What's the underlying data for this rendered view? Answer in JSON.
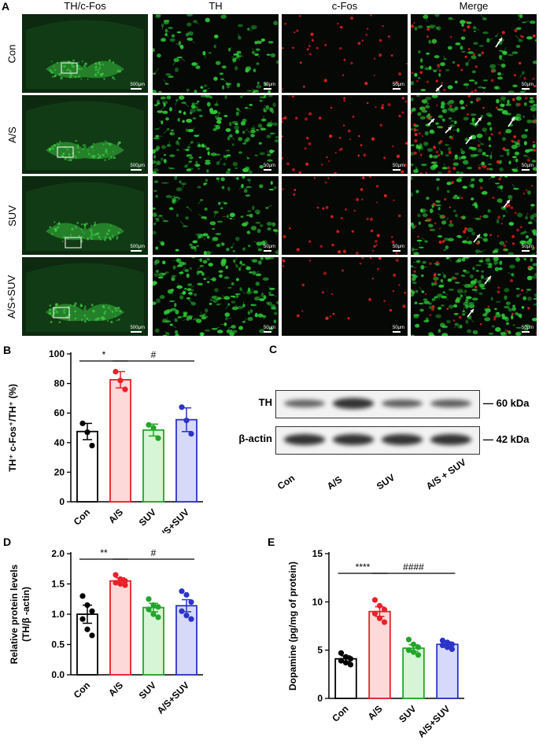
{
  "panel_A": {
    "label": "A",
    "columns": [
      "TH/c-Fos",
      "TH",
      "c-Fos",
      "Merge"
    ],
    "rows": [
      "Con",
      "A/S",
      "SUV",
      "A/S+SUV"
    ],
    "scale_overview": "500μm",
    "scale_zoom": "50μm",
    "colors": {
      "green": "#2fd23a",
      "red": "#e02020",
      "background": "#050805"
    }
  },
  "panel_C": {
    "label": "C",
    "bands": [
      {
        "name": "TH",
        "size": "60 kDa",
        "intensity": [
          0.55,
          0.95,
          0.6,
          0.6
        ]
      },
      {
        "name": "β-actin",
        "size": "42 kDa",
        "intensity": [
          0.95,
          0.95,
          0.95,
          0.95
        ]
      }
    ],
    "lanes": [
      "Con",
      "A/S",
      "SUV",
      "A/S + SUV"
    ]
  },
  "chart_data": [
    {
      "id": "B",
      "type": "bar",
      "panel_label": "B",
      "categories": [
        "Con",
        "A/S",
        "SUV",
        "A/S+SUV"
      ],
      "values": [
        47.5,
        82.5,
        48.5,
        55.5
      ],
      "errors": [
        5.5,
        5.5,
        4.0,
        8.0
      ],
      "points": [
        [
          53,
          47,
          38
        ],
        [
          88,
          82,
          76
        ],
        [
          52,
          50,
          43
        ],
        [
          64,
          55,
          46
        ]
      ],
      "ylabel": "TH⁺ c-Fos⁺/TH⁺ (%)",
      "ylim": [
        0,
        100
      ],
      "yticks": [
        0,
        20,
        40,
        60,
        80,
        100
      ],
      "colors": {
        "fill": [
          "#ffffff",
          "#fdd9d9",
          "#d6f5d6",
          "#d6d9fa"
        ],
        "stroke": [
          "#000000",
          "#e8202a",
          "#22a52a",
          "#2b33c8"
        ]
      },
      "significance": [
        {
          "text": "*",
          "from": 0,
          "to": 1
        },
        {
          "text": "#",
          "from": 1,
          "to": 3
        }
      ]
    },
    {
      "id": "D",
      "type": "bar",
      "panel_label": "D",
      "categories": [
        "Con",
        "A/S",
        "SUV",
        "A/S+SUV"
      ],
      "values": [
        1.0,
        1.55,
        1.11,
        1.14
      ],
      "errors": [
        0.15,
        0.05,
        0.07,
        0.1
      ],
      "points": [
        [
          1.3,
          1.15,
          1.05,
          0.92,
          0.75,
          0.65
        ],
        [
          1.65,
          1.58,
          1.55,
          1.52,
          1.5,
          1.48
        ],
        [
          1.25,
          1.15,
          1.12,
          1.08,
          1.0,
          0.95
        ],
        [
          1.38,
          1.32,
          1.2,
          1.05,
          0.98,
          0.92
        ]
      ],
      "ylabel": "Relative protein levels\n(TH/β -actin)",
      "ylim": [
        0,
        2.0
      ],
      "yticks": [
        0.0,
        0.5,
        1.0,
        1.5,
        2.0
      ],
      "colors": {
        "fill": [
          "#ffffff",
          "#fdd9d9",
          "#d6f5d6",
          "#d6d9fa"
        ],
        "stroke": [
          "#000000",
          "#e8202a",
          "#22a52a",
          "#2b33c8"
        ]
      },
      "significance": [
        {
          "text": "**",
          "from": 0,
          "to": 1
        },
        {
          "text": "#",
          "from": 1,
          "to": 3
        }
      ]
    },
    {
      "id": "E",
      "type": "bar",
      "panel_label": "E",
      "categories": [
        "Con",
        "A/S",
        "SUV",
        "A/S+SUV"
      ],
      "values": [
        4.1,
        9.0,
        5.2,
        5.6
      ],
      "errors": [
        0.3,
        0.5,
        0.35,
        0.25
      ],
      "points": [
        [
          4.7,
          4.3,
          4.1,
          3.9,
          3.7,
          3.5
        ],
        [
          10.2,
          9.6,
          9.2,
          8.8,
          8.3,
          7.9
        ],
        [
          6.1,
          5.6,
          5.3,
          5.0,
          4.8,
          4.5
        ],
        [
          6.0,
          5.8,
          5.6,
          5.5,
          5.3,
          5.1
        ]
      ],
      "ylabel": "Dopamine (pg/mg of protein)",
      "ylim": [
        0,
        15
      ],
      "yticks": [
        0,
        5,
        10,
        15
      ],
      "colors": {
        "fill": [
          "#ffffff",
          "#fdd9d9",
          "#d6f5d6",
          "#d6d9fa"
        ],
        "stroke": [
          "#000000",
          "#e8202a",
          "#22a52a",
          "#2b33c8"
        ]
      },
      "significance": [
        {
          "text": "****",
          "from": 0,
          "to": 1
        },
        {
          "text": "####",
          "from": 1,
          "to": 3
        }
      ]
    }
  ]
}
